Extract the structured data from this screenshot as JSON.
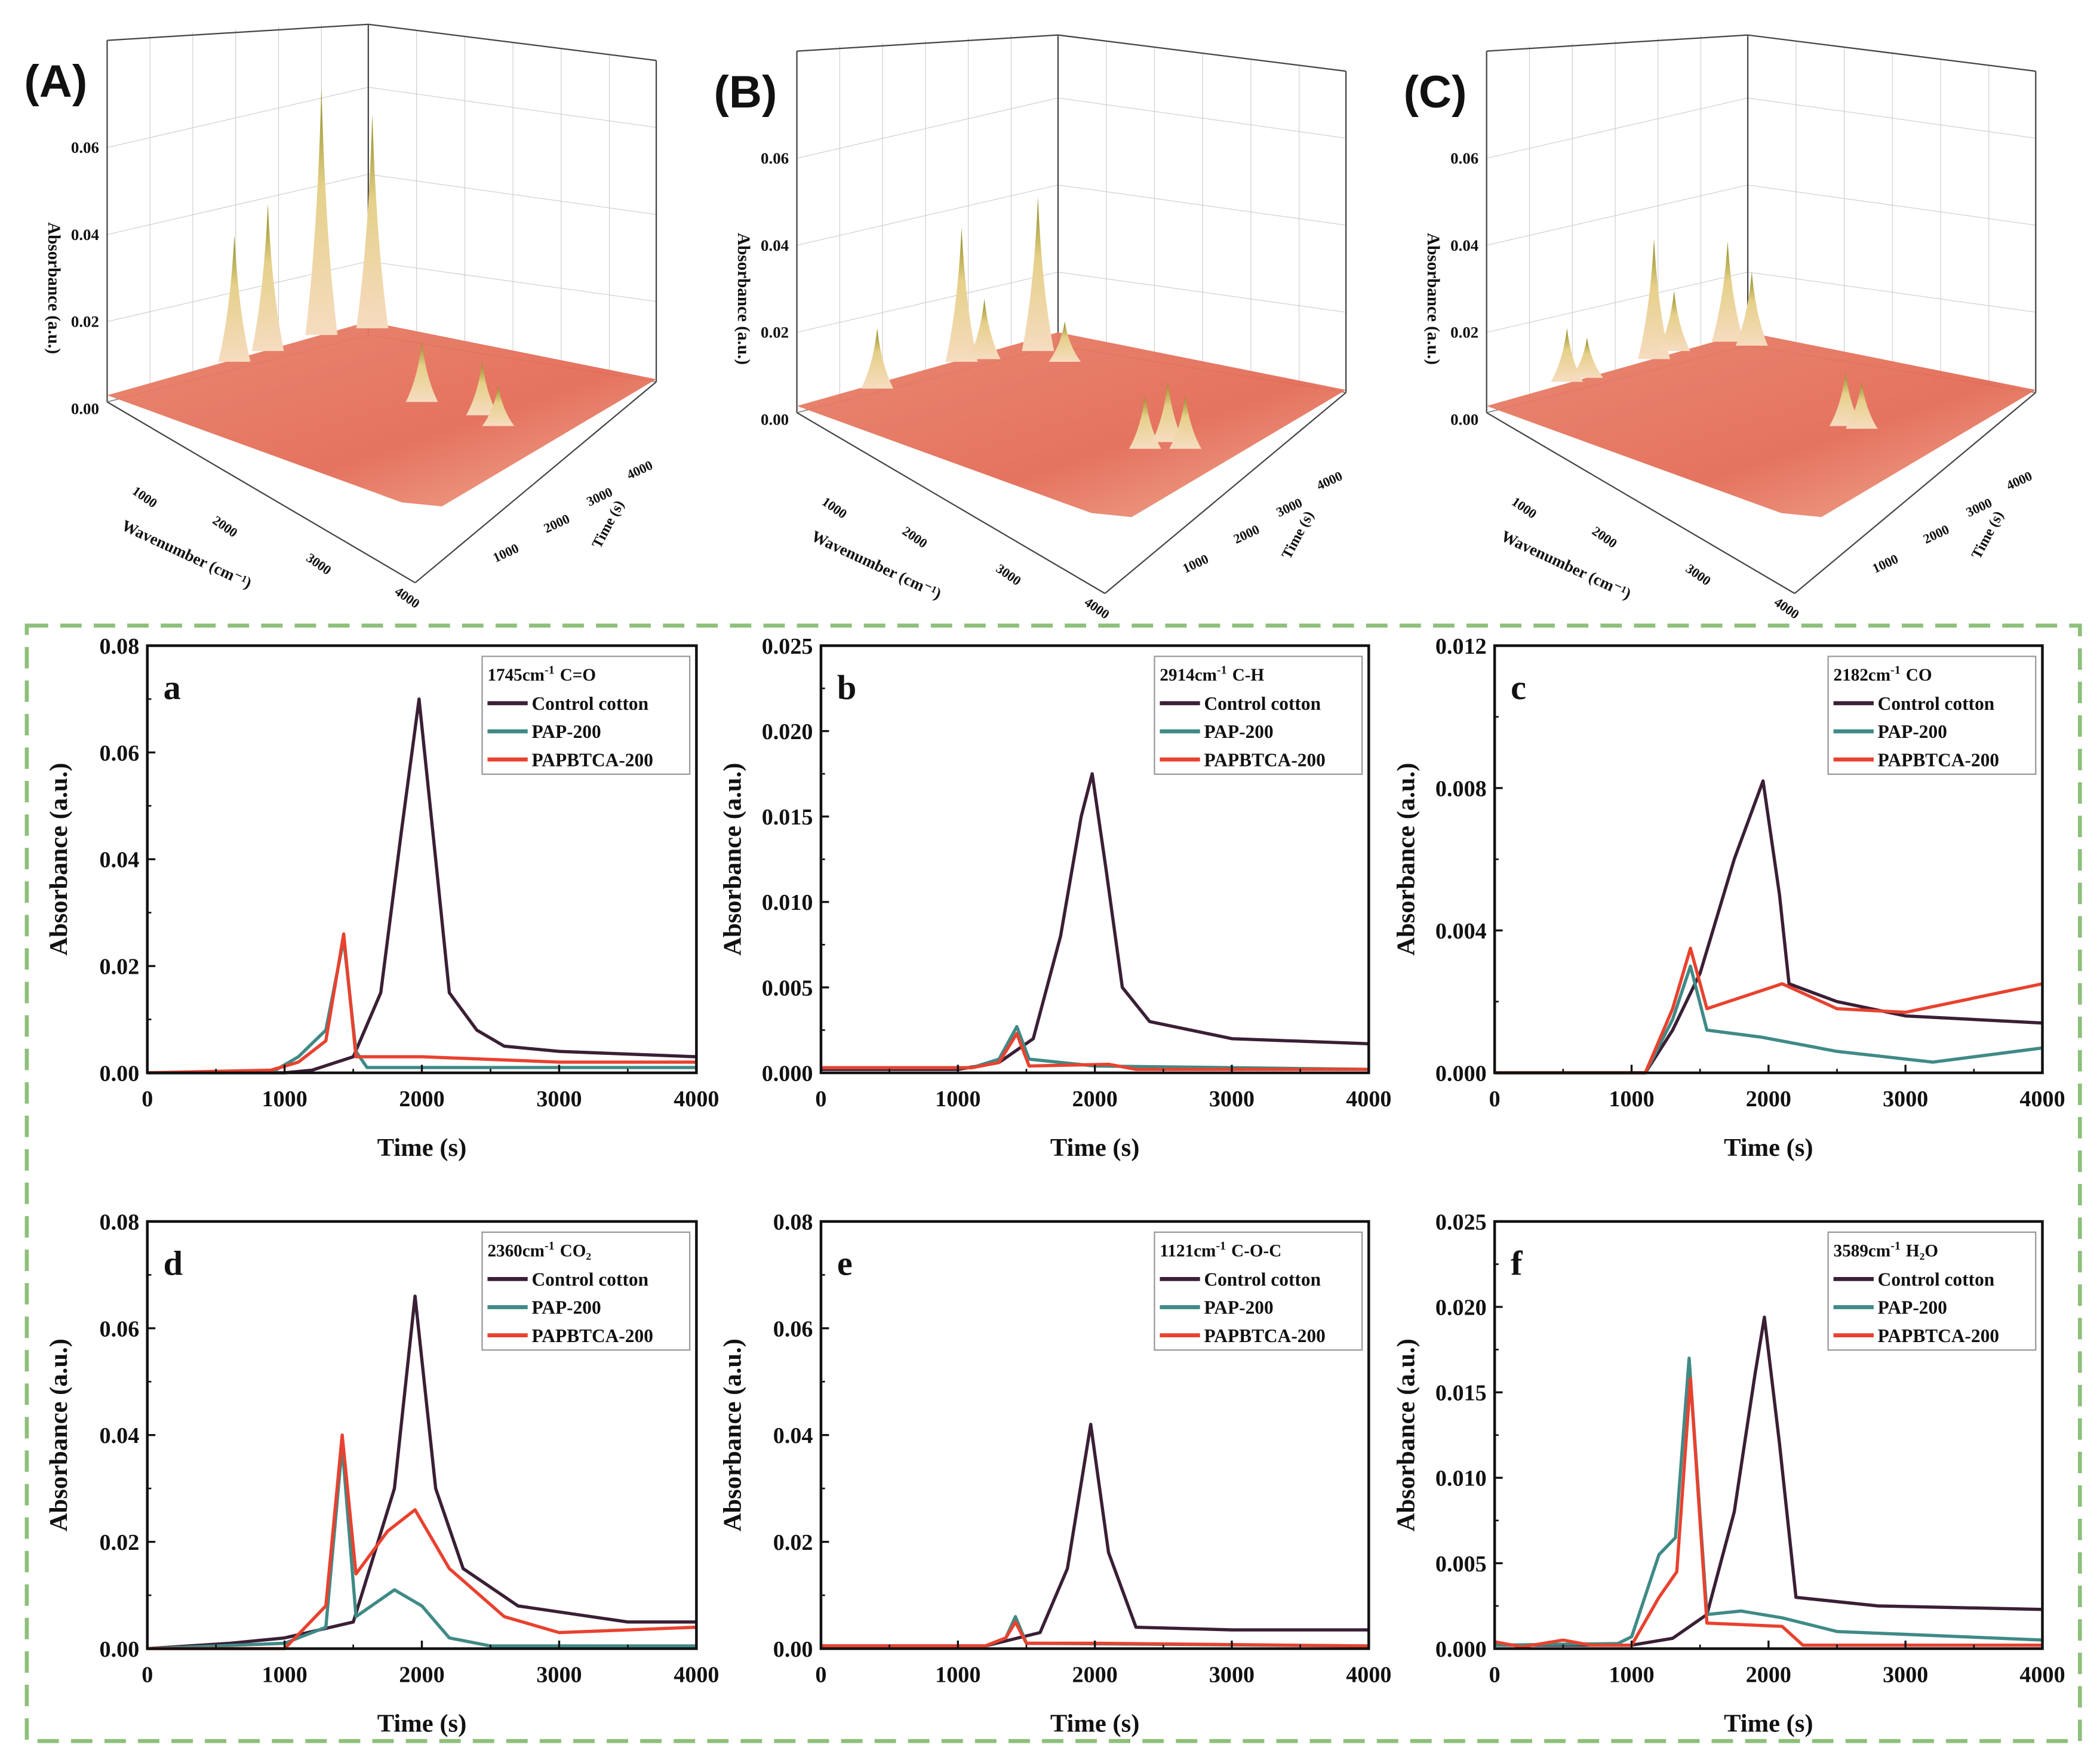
{
  "colors": {
    "control": "#3a1f35",
    "pap": "#3f8a86",
    "papbtca": "#e8422f",
    "frame": "#8dc07a"
  },
  "surface_panels": [
    {
      "label": "(A)",
      "zlabel": "Absorbance (a.u.)",
      "xlabel": "Wavenumber (cm⁻¹)",
      "ylabel": "Time (s)",
      "zticks": [
        "0.00",
        "0.02",
        "0.04",
        "0.06"
      ],
      "xticks": [
        "1000",
        "2000",
        "3000",
        "4000"
      ],
      "yticks": [
        "1000",
        "2000",
        "3000",
        "4000"
      ]
    },
    {
      "label": "(B)",
      "zlabel": "Absorbance (a.u.)",
      "xlabel": "Wavenumber (cm⁻¹)",
      "ylabel": "Time (s)",
      "zticks": [
        "0.00",
        "0.02",
        "0.04",
        "0.06"
      ],
      "xticks": [
        "1000",
        "2000",
        "3000",
        "4000"
      ],
      "yticks": [
        "1000",
        "2000",
        "3000",
        "4000"
      ]
    },
    {
      "label": "(C)",
      "zlabel": "Absorbance (a.u.)",
      "xlabel": "Wavenumber (cm⁻¹)",
      "ylabel": "Time (s)",
      "zticks": [
        "0.00",
        "0.02",
        "0.04",
        "0.06"
      ],
      "xticks": [
        "1000",
        "2000",
        "3000",
        "4000"
      ],
      "yticks": [
        "1000",
        "2000",
        "3000",
        "4000"
      ]
    }
  ],
  "chart_data": [
    {
      "type": "line",
      "panel": "a",
      "legend_wavenumber": "1745cm",
      "legend_unit_sup": "-1",
      "legend_group": "C=O",
      "xlabel": "Time (s)",
      "ylabel": "Absorbance (a.u.)",
      "xlim": [
        0,
        4000
      ],
      "ylim": [
        0,
        0.08
      ],
      "xticks": [
        "0",
        "1000",
        "2000",
        "3000",
        "4000"
      ],
      "yticks": [
        "0.00",
        "0.02",
        "0.04",
        "0.06",
        "0.08"
      ],
      "series": [
        {
          "name": "Control cotton",
          "key": "control",
          "points": [
            [
              0,
              0
            ],
            [
              1000,
              0
            ],
            [
              1200,
              0.0005
            ],
            [
              1500,
              0.003
            ],
            [
              1700,
              0.015
            ],
            [
              1850,
              0.045
            ],
            [
              1980,
              0.07
            ],
            [
              2100,
              0.04
            ],
            [
              2200,
              0.015
            ],
            [
              2400,
              0.008
            ],
            [
              2600,
              0.005
            ],
            [
              3000,
              0.004
            ],
            [
              4000,
              0.003
            ]
          ]
        },
        {
          "name": "PAP-200",
          "key": "pap",
          "points": [
            [
              0,
              0
            ],
            [
              900,
              0
            ],
            [
              1100,
              0.003
            ],
            [
              1300,
              0.008
            ],
            [
              1430,
              0.025
            ],
            [
              1520,
              0.004
            ],
            [
              1600,
              0.001
            ],
            [
              4000,
              0.001
            ]
          ]
        },
        {
          "name": "PAPBTCA-200",
          "key": "papbtca",
          "points": [
            [
              0,
              0
            ],
            [
              900,
              0.0005
            ],
            [
              1100,
              0.002
            ],
            [
              1300,
              0.006
            ],
            [
              1430,
              0.026
            ],
            [
              1520,
              0.003
            ],
            [
              1600,
              0.003
            ],
            [
              2000,
              0.003
            ],
            [
              3000,
              0.002
            ],
            [
              4000,
              0.002
            ]
          ]
        }
      ]
    },
    {
      "type": "line",
      "panel": "b",
      "legend_wavenumber": "2914cm",
      "legend_unit_sup": "-1",
      "legend_group": "C-H",
      "xlabel": "Time (s)",
      "ylabel": "Absorbance (a.u.)",
      "xlim": [
        0,
        4000
      ],
      "ylim": [
        0,
        0.025
      ],
      "xticks": [
        "0",
        "1000",
        "2000",
        "3000",
        "4000"
      ],
      "yticks": [
        "0.000",
        "0.005",
        "0.010",
        "0.015",
        "0.020",
        "0.025"
      ],
      "series": [
        {
          "name": "Control cotton",
          "key": "control",
          "points": [
            [
              0,
              0.0002
            ],
            [
              1000,
              0.0002
            ],
            [
              1300,
              0.0006
            ],
            [
              1550,
              0.002
            ],
            [
              1750,
              0.008
            ],
            [
              1900,
              0.015
            ],
            [
              1980,
              0.0175
            ],
            [
              2080,
              0.012
            ],
            [
              2200,
              0.005
            ],
            [
              2400,
              0.003
            ],
            [
              3000,
              0.002
            ],
            [
              4000,
              0.0017
            ]
          ]
        },
        {
          "name": "PAP-200",
          "key": "pap",
          "points": [
            [
              0,
              0.0003
            ],
            [
              1100,
              0.0003
            ],
            [
              1300,
              0.0008
            ],
            [
              1430,
              0.0027
            ],
            [
              1520,
              0.0008
            ],
            [
              2000,
              0.0004
            ],
            [
              4000,
              0.0002
            ]
          ]
        },
        {
          "name": "PAPBTCA-200",
          "key": "papbtca",
          "points": [
            [
              0,
              0.0003
            ],
            [
              1100,
              0.0003
            ],
            [
              1300,
              0.0006
            ],
            [
              1430,
              0.0023
            ],
            [
              1520,
              0.0004
            ],
            [
              2100,
              0.0005
            ],
            [
              2300,
              0.0002
            ],
            [
              4000,
              0.0002
            ]
          ]
        }
      ]
    },
    {
      "type": "line",
      "panel": "c",
      "legend_wavenumber": "2182cm",
      "legend_unit_sup": "-1",
      "legend_group": "CO",
      "xlabel": "Time (s)",
      "ylabel": "Absorbance (a.u.)",
      "xlim": [
        0,
        4000
      ],
      "ylim": [
        0,
        0.012
      ],
      "xticks": [
        "0",
        "1000",
        "2000",
        "3000",
        "4000"
      ],
      "yticks": [
        "0.000",
        "0.004",
        "0.008",
        "0.012"
      ],
      "series": [
        {
          "name": "Control cotton",
          "key": "control",
          "points": [
            [
              0,
              0
            ],
            [
              1100,
              0
            ],
            [
              1300,
              0.0012
            ],
            [
              1500,
              0.0028
            ],
            [
              1750,
              0.006
            ],
            [
              1960,
              0.0082
            ],
            [
              2080,
              0.005
            ],
            [
              2150,
              0.0025
            ],
            [
              2500,
              0.002
            ],
            [
              3000,
              0.0016
            ],
            [
              4000,
              0.0014
            ]
          ]
        },
        {
          "name": "PAP-200",
          "key": "pap",
          "points": [
            [
              0,
              0
            ],
            [
              1100,
              0
            ],
            [
              1300,
              0.0015
            ],
            [
              1430,
              0.003
            ],
            [
              1550,
              0.0012
            ],
            [
              1950,
              0.001
            ],
            [
              2500,
              0.0006
            ],
            [
              3200,
              0.0003
            ],
            [
              4000,
              0.0007
            ]
          ]
        },
        {
          "name": "PAPBTCA-200",
          "key": "papbtca",
          "points": [
            [
              0,
              0
            ],
            [
              1100,
              0
            ],
            [
              1300,
              0.0018
            ],
            [
              1430,
              0.0035
            ],
            [
              1550,
              0.0018
            ],
            [
              2100,
              0.0025
            ],
            [
              2500,
              0.0018
            ],
            [
              3000,
              0.0017
            ],
            [
              4000,
              0.0025
            ]
          ]
        }
      ]
    },
    {
      "type": "line",
      "panel": "d",
      "legend_wavenumber": "2360cm",
      "legend_unit_sup": "-1",
      "legend_group": "CO₂",
      "xlabel": "Time (s)",
      "ylabel": "Absorbance (a.u.)",
      "xlim": [
        0,
        4000
      ],
      "ylim": [
        0,
        0.08
      ],
      "xticks": [
        "0",
        "1000",
        "2000",
        "3000",
        "4000"
      ],
      "yticks": [
        "0.00",
        "0.02",
        "0.04",
        "0.06",
        "0.08"
      ],
      "series": [
        {
          "name": "Control cotton",
          "key": "control",
          "points": [
            [
              0,
              0
            ],
            [
              600,
              0.001
            ],
            [
              1000,
              0.002
            ],
            [
              1500,
              0.005
            ],
            [
              1800,
              0.03
            ],
            [
              1950,
              0.066
            ],
            [
              2100,
              0.03
            ],
            [
              2300,
              0.015
            ],
            [
              2700,
              0.008
            ],
            [
              3500,
              0.005
            ],
            [
              4000,
              0.005
            ]
          ]
        },
        {
          "name": "PAP-200",
          "key": "pap",
          "points": [
            [
              0,
              0
            ],
            [
              1000,
              0.001
            ],
            [
              1300,
              0.004
            ],
            [
              1420,
              0.038
            ],
            [
              1520,
              0.006
            ],
            [
              1800,
              0.011
            ],
            [
              2000,
              0.008
            ],
            [
              2200,
              0.002
            ],
            [
              2500,
              0.0005
            ],
            [
              4000,
              0.0005
            ]
          ]
        },
        {
          "name": "PAPBTCA-200",
          "key": "papbtca",
          "points": [
            [
              0,
              0
            ],
            [
              1000,
              0
            ],
            [
              1300,
              0.008
            ],
            [
              1420,
              0.04
            ],
            [
              1520,
              0.014
            ],
            [
              1750,
              0.022
            ],
            [
              1950,
              0.026
            ],
            [
              2200,
              0.015
            ],
            [
              2600,
              0.006
            ],
            [
              3000,
              0.003
            ],
            [
              4000,
              0.004
            ]
          ]
        }
      ]
    },
    {
      "type": "line",
      "panel": "e",
      "legend_wavenumber": "1121cm",
      "legend_unit_sup": "-1",
      "legend_group": "C-O-C",
      "xlabel": "Time (s)",
      "ylabel": "Absorbance (a.u.)",
      "xlim": [
        0,
        4000
      ],
      "ylim": [
        0,
        0.08
      ],
      "xticks": [
        "0",
        "1000",
        "2000",
        "3000",
        "4000"
      ],
      "yticks": [
        "0.00",
        "0.02",
        "0.04",
        "0.06",
        "0.08"
      ],
      "series": [
        {
          "name": "Control cotton",
          "key": "control",
          "points": [
            [
              0,
              0.0005
            ],
            [
              1200,
              0.0005
            ],
            [
              1600,
              0.003
            ],
            [
              1800,
              0.015
            ],
            [
              1970,
              0.042
            ],
            [
              2100,
              0.018
            ],
            [
              2300,
              0.004
            ],
            [
              3000,
              0.0035
            ],
            [
              4000,
              0.0035
            ]
          ]
        },
        {
          "name": "PAP-200",
          "key": "pap",
          "points": [
            [
              0,
              0.0005
            ],
            [
              1200,
              0.0005
            ],
            [
              1350,
              0.002
            ],
            [
              1420,
              0.006
            ],
            [
              1500,
              0.001
            ],
            [
              4000,
              0.0005
            ]
          ]
        },
        {
          "name": "PAPBTCA-200",
          "key": "papbtca",
          "points": [
            [
              0,
              0.0005
            ],
            [
              1200,
              0.0005
            ],
            [
              1350,
              0.002
            ],
            [
              1420,
              0.005
            ],
            [
              1500,
              0.001
            ],
            [
              2000,
              0.001
            ],
            [
              4000,
              0.0005
            ]
          ]
        }
      ]
    },
    {
      "type": "line",
      "panel": "f",
      "legend_wavenumber": "3589cm",
      "legend_unit_sup": "-1",
      "legend_group": "H₂O",
      "xlabel": "Time (s)",
      "ylabel": "Absorbance (a.u.)",
      "xlim": [
        0,
        4000
      ],
      "ylim": [
        0,
        0.025
      ],
      "xticks": [
        "0",
        "1000",
        "2000",
        "3000",
        "4000"
      ],
      "yticks": [
        "0.000",
        "0.005",
        "0.010",
        "0.015",
        "0.020",
        "0.025"
      ],
      "series": [
        {
          "name": "Control cotton",
          "key": "control",
          "points": [
            [
              0,
              0.0002
            ],
            [
              1000,
              0.0002
            ],
            [
              1300,
              0.0006
            ],
            [
              1550,
              0.002
            ],
            [
              1750,
              0.008
            ],
            [
              1900,
              0.016
            ],
            [
              1970,
              0.0194
            ],
            [
              2080,
              0.012
            ],
            [
              2200,
              0.003
            ],
            [
              2800,
              0.0025
            ],
            [
              4000,
              0.0023
            ]
          ]
        },
        {
          "name": "PAP-200",
          "key": "pap",
          "points": [
            [
              0,
              0.0002
            ],
            [
              900,
              0.0003
            ],
            [
              1000,
              0.0007
            ],
            [
              1200,
              0.0055
            ],
            [
              1320,
              0.0065
            ],
            [
              1420,
              0.017
            ],
            [
              1550,
              0.002
            ],
            [
              1800,
              0.0022
            ],
            [
              2100,
              0.0018
            ],
            [
              2500,
              0.001
            ],
            [
              4000,
              0.0005
            ]
          ]
        },
        {
          "name": "PAPBTCA-200",
          "key": "papbtca",
          "points": [
            [
              0,
              0.0004
            ],
            [
              200,
              0.0001
            ],
            [
              500,
              0.0005
            ],
            [
              700,
              0.0002
            ],
            [
              1000,
              0.0002
            ],
            [
              1200,
              0.003
            ],
            [
              1330,
              0.0045
            ],
            [
              1430,
              0.0158
            ],
            [
              1550,
              0.0015
            ],
            [
              2100,
              0.0013
            ],
            [
              2250,
              0.0002
            ],
            [
              4000,
              0.0002
            ]
          ]
        }
      ]
    }
  ]
}
